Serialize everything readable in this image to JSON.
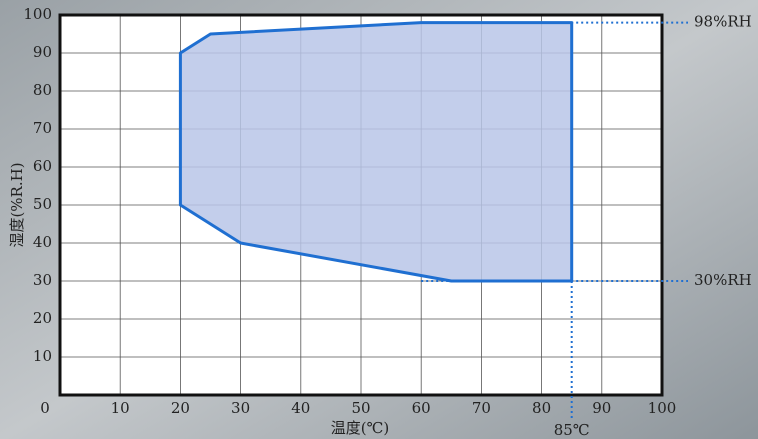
{
  "chart_data": {
    "type": "area",
    "x_label": "温度(℃)",
    "y_label": "湿度(%R.H)",
    "x": [
      20,
      20,
      25,
      60,
      85,
      85,
      65,
      30
    ],
    "values": [
      50,
      90,
      95,
      98,
      98,
      30,
      30,
      40
    ],
    "color": "#1f6fd1",
    "fill": "#b9c6e8",
    "xlim": [
      0,
      100
    ],
    "xticks": [
      0,
      10,
      20,
      30,
      40,
      50,
      60,
      70,
      80,
      90,
      100
    ],
    "ylim": [
      0,
      100
    ],
    "yticks": [
      10,
      20,
      30,
      40,
      50,
      60,
      70,
      80,
      90,
      100
    ],
    "grid": true,
    "annotations": [
      {
        "text": "98%RH",
        "y": 98
      },
      {
        "text": "30%RH",
        "y": 30
      },
      {
        "text": "85℃",
        "x": 85
      }
    ]
  }
}
